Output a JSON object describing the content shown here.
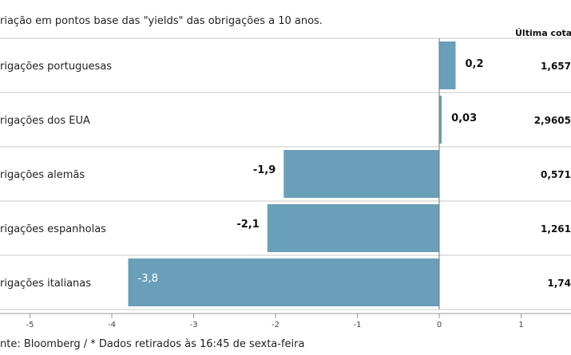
{
  "chart_data": {
    "type": "bar",
    "orientation": "horizontal",
    "title": "riação em pontos base das \"yields\" das obrigações a 10 anos.",
    "last_column_header": "Última cotaç",
    "categories": [
      "rigações portuguesas",
      "rigações dos EUA",
      "rigações alemãs",
      "rigações espanholas",
      "rigações italianas"
    ],
    "values": [
      0.2,
      0.03,
      -1.9,
      -2.1,
      -3.8
    ],
    "value_labels": [
      "0,2",
      "0,03",
      "-1,9",
      "-2,1",
      "-3,8"
    ],
    "last_quotes": [
      "1,657",
      "2,9605",
      "0,571",
      "1,261",
      "1,74"
    ],
    "x_ticks": [
      -5,
      -4,
      -3,
      -2,
      -1,
      0,
      1
    ],
    "x_tick_labels": [
      "-5",
      "-4",
      "-3",
      "-2",
      "-1",
      "0",
      "1"
    ],
    "xlim": [
      -5,
      1
    ],
    "grid": false,
    "bar_color": "#6a9fba",
    "source": "nte: Bloomberg / * Dados retirados às 16:45 de sexta-feira"
  }
}
